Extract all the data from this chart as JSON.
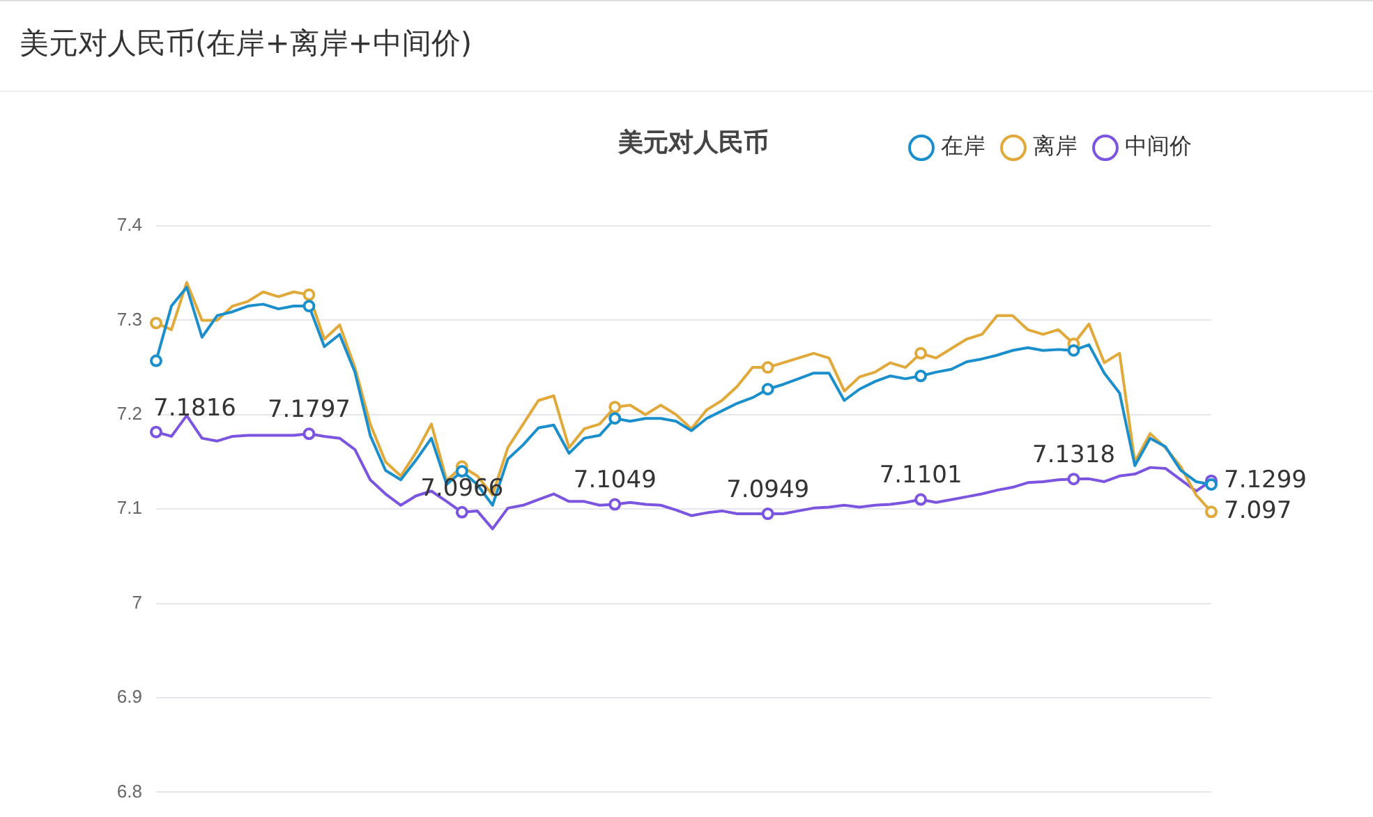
{
  "chart_data": {
    "type": "line",
    "title": "美元对人民币(在岸+离岸+中间价)",
    "subtitle": "美元对人民币",
    "categories": [
      null,
      null,
      null,
      null,
      null,
      null,
      null,
      null,
      null,
      null,
      null,
      null,
      null,
      null,
      null,
      null,
      null,
      null,
      null,
      null,
      null,
      null,
      null,
      null,
      null,
      null,
      null,
      null,
      null,
      null,
      null,
      null,
      null,
      null,
      null,
      null,
      null,
      null,
      null,
      null,
      null,
      null,
      null,
      null,
      null,
      null,
      null,
      null,
      null,
      null,
      null,
      null,
      null,
      null,
      null,
      null,
      null,
      null,
      null,
      null,
      null,
      null,
      null,
      null,
      null,
      null,
      null,
      null,
      null,
      null
    ],
    "series": [
      {
        "name": "在岸",
        "color": "#1a8fcc",
        "values": [
          7.257,
          7.315,
          7.335,
          7.282,
          7.305,
          7.309,
          7.315,
          7.317,
          7.312,
          7.315,
          7.315,
          7.272,
          7.285,
          7.245,
          7.178,
          7.141,
          7.131,
          7.152,
          7.175,
          7.126,
          7.14,
          7.126,
          7.104,
          7.153,
          7.168,
          7.186,
          7.189,
          7.159,
          7.175,
          7.178,
          7.196,
          7.193,
          7.196,
          7.196,
          7.193,
          7.183,
          7.196,
          7.204,
          7.212,
          7.218,
          7.227,
          7.232,
          7.238,
          7.244,
          7.244,
          7.215,
          7.227,
          7.235,
          7.241,
          7.238,
          7.241,
          7.245,
          7.248,
          7.256,
          7.259,
          7.263,
          7.268,
          7.271,
          7.268,
          7.269,
          7.268,
          7.274,
          7.244,
          7.223,
          7.146,
          7.175,
          7.166,
          7.141,
          7.129,
          7.126
        ]
      },
      {
        "name": "离岸",
        "color": "#e0a93a",
        "values": [
          7.297,
          7.29,
          7.34,
          7.3,
          7.3,
          7.315,
          7.32,
          7.33,
          7.325,
          7.33,
          7.327,
          7.28,
          7.295,
          7.25,
          7.19,
          7.15,
          7.135,
          7.16,
          7.19,
          7.13,
          7.145,
          7.135,
          7.115,
          7.165,
          7.19,
          7.215,
          7.22,
          7.165,
          7.185,
          7.19,
          7.208,
          7.21,
          7.2,
          7.21,
          7.2,
          7.185,
          7.205,
          7.215,
          7.23,
          7.25,
          7.25,
          7.255,
          7.26,
          7.265,
          7.26,
          7.225,
          7.24,
          7.245,
          7.255,
          7.25,
          7.265,
          7.26,
          7.27,
          7.28,
          7.285,
          7.305,
          7.305,
          7.29,
          7.285,
          7.29,
          7.275,
          7.296,
          7.255,
          7.265,
          7.15,
          7.18,
          7.165,
          7.145,
          7.115,
          7.097
        ],
        "value_labels": [
          null,
          null,
          null,
          null,
          null,
          null,
          null,
          null,
          null,
          null,
          null,
          null,
          null,
          null,
          null,
          null,
          null,
          null,
          null,
          null,
          null,
          null,
          null,
          null,
          null,
          null,
          null,
          null,
          null,
          null,
          null,
          null,
          null,
          null,
          null,
          null,
          null,
          null,
          null,
          null,
          null,
          null,
          null,
          null,
          null,
          null,
          null,
          null,
          null,
          null,
          null,
          null,
          null,
          null,
          null,
          null,
          null,
          null,
          null,
          null,
          null,
          null,
          null,
          null,
          null,
          null,
          null,
          null,
          null,
          "7.097"
        ]
      },
      {
        "name": "中间价",
        "color": "#7b55e0",
        "values": [
          7.1816,
          7.177,
          7.199,
          7.175,
          7.172,
          7.177,
          7.178,
          7.178,
          7.178,
          7.178,
          7.1797,
          7.177,
          7.175,
          7.163,
          7.131,
          7.116,
          7.104,
          7.114,
          7.119,
          7.108,
          7.0966,
          7.098,
          7.079,
          7.101,
          7.104,
          7.11,
          7.116,
          7.108,
          7.108,
          7.104,
          7.1049,
          7.107,
          7.105,
          7.104,
          7.099,
          7.093,
          7.096,
          7.098,
          7.095,
          7.095,
          7.0949,
          7.095,
          7.098,
          7.101,
          7.102,
          7.104,
          7.102,
          7.104,
          7.105,
          7.107,
          7.1101,
          7.107,
          7.11,
          7.113,
          7.116,
          7.12,
          7.123,
          7.128,
          7.129,
          7.131,
          7.1318,
          7.132,
          7.129,
          7.135,
          7.137,
          7.144,
          7.143,
          7.131,
          7.119,
          7.1299
        ],
        "value_labels": [
          "7.1816",
          null,
          null,
          null,
          null,
          null,
          null,
          null,
          null,
          null,
          "7.1797",
          null,
          null,
          null,
          null,
          null,
          null,
          null,
          null,
          null,
          "7.0966",
          null,
          null,
          null,
          null,
          null,
          null,
          null,
          null,
          null,
          "7.1049",
          null,
          null,
          null,
          null,
          null,
          null,
          null,
          null,
          null,
          "7.0949",
          null,
          null,
          null,
          null,
          null,
          null,
          null,
          null,
          null,
          "7.1101",
          null,
          null,
          null,
          null,
          null,
          null,
          null,
          null,
          null,
          "7.1318",
          null,
          null,
          null,
          null,
          null,
          null,
          null,
          null,
          "7.1299"
        ]
      }
    ],
    "ylim": [
      6.8,
      7.4
    ],
    "yticks": [
      6.8,
      6.9,
      {
        "value": 7,
        "label": "7"
      },
      7.1,
      7.2,
      7.3,
      7.4
    ],
    "grid": "y",
    "legend": "top right",
    "tick_labels": "y",
    "line_style": "solid"
  }
}
